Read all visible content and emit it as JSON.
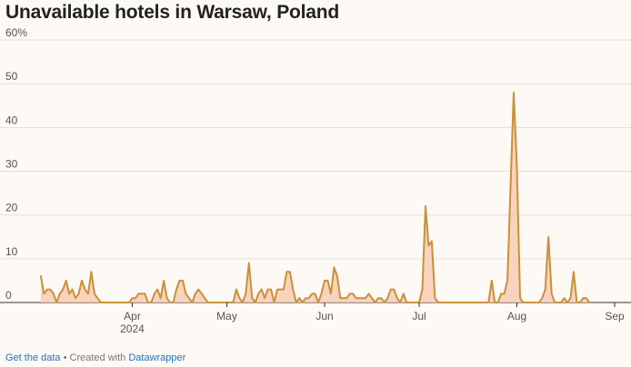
{
  "chart_data": {
    "type": "area",
    "title": "Unavailable hotels in Warsaw, Poland",
    "ylabel": "%",
    "ylim": [
      0,
      60
    ],
    "y_ticks": [
      0,
      10,
      20,
      30,
      40,
      50,
      60
    ],
    "y_tick_labels": [
      "0",
      "10",
      "20",
      "30",
      "40",
      "50",
      "60%"
    ],
    "x_range": [
      0,
      184
    ],
    "x_ticks": [
      {
        "day": 31,
        "label": "Apr",
        "sublabel": "2024"
      },
      {
        "day": 61,
        "label": "May",
        "sublabel": ""
      },
      {
        "day": 92,
        "label": "Jun",
        "sublabel": ""
      },
      {
        "day": 122,
        "label": "Jul",
        "sublabel": ""
      },
      {
        "day": 153,
        "label": "Aug",
        "sublabel": ""
      },
      {
        "day": 184,
        "label": "Sep",
        "sublabel": ""
      }
    ],
    "series": [
      {
        "name": "Unavailable hotels",
        "line_color": "#c9913a",
        "fill_color": "#f8ccb4",
        "points": [
          [
            2,
            6
          ],
          [
            3,
            2
          ],
          [
            4,
            3
          ],
          [
            5,
            3
          ],
          [
            6,
            2
          ],
          [
            7,
            0
          ],
          [
            8,
            2
          ],
          [
            9,
            3
          ],
          [
            10,
            5
          ],
          [
            11,
            2
          ],
          [
            12,
            3
          ],
          [
            13,
            1
          ],
          [
            14,
            2
          ],
          [
            15,
            5
          ],
          [
            16,
            3
          ],
          [
            17,
            2
          ],
          [
            18,
            7
          ],
          [
            19,
            2
          ],
          [
            20,
            1
          ],
          [
            21,
            0
          ],
          [
            29,
            0
          ],
          [
            30,
            0
          ],
          [
            31,
            1
          ],
          [
            32,
            1
          ],
          [
            33,
            2
          ],
          [
            34,
            2
          ],
          [
            35,
            2
          ],
          [
            36,
            0
          ],
          [
            37,
            0
          ],
          [
            38,
            2
          ],
          [
            39,
            3
          ],
          [
            40,
            1
          ],
          [
            41,
            5
          ],
          [
            42,
            1
          ],
          [
            43,
            0
          ],
          [
            44,
            0
          ],
          [
            45,
            3
          ],
          [
            46,
            5
          ],
          [
            47,
            5
          ],
          [
            48,
            2
          ],
          [
            49,
            1
          ],
          [
            50,
            0
          ],
          [
            51,
            2
          ],
          [
            52,
            3
          ],
          [
            53,
            2
          ],
          [
            54,
            1
          ],
          [
            55,
            0
          ],
          [
            62,
            0
          ],
          [
            63,
            0
          ],
          [
            64,
            3
          ],
          [
            65,
            1
          ],
          [
            66,
            0
          ],
          [
            67,
            2
          ],
          [
            68,
            9
          ],
          [
            69,
            1
          ],
          [
            70,
            0
          ],
          [
            71,
            2
          ],
          [
            72,
            3
          ],
          [
            73,
            1
          ],
          [
            74,
            3
          ],
          [
            75,
            3
          ],
          [
            76,
            0
          ],
          [
            77,
            3
          ],
          [
            78,
            3
          ],
          [
            79,
            3
          ],
          [
            80,
            7
          ],
          [
            81,
            7
          ],
          [
            82,
            3
          ],
          [
            83,
            0
          ],
          [
            84,
            1
          ],
          [
            85,
            0
          ],
          [
            86,
            1
          ],
          [
            87,
            1
          ],
          [
            88,
            2
          ],
          [
            89,
            2
          ],
          [
            90,
            0
          ],
          [
            91,
            2
          ],
          [
            92,
            5
          ],
          [
            93,
            5
          ],
          [
            94,
            2
          ],
          [
            95,
            8
          ],
          [
            96,
            6
          ],
          [
            97,
            1
          ],
          [
            98,
            1
          ],
          [
            99,
            1
          ],
          [
            100,
            2
          ],
          [
            101,
            2
          ],
          [
            102,
            1
          ],
          [
            103,
            1
          ],
          [
            104,
            1
          ],
          [
            105,
            1
          ],
          [
            106,
            2
          ],
          [
            107,
            1
          ],
          [
            108,
            0
          ],
          [
            109,
            1
          ],
          [
            110,
            1
          ],
          [
            111,
            0
          ],
          [
            112,
            1
          ],
          [
            113,
            3
          ],
          [
            114,
            3
          ],
          [
            115,
            1
          ],
          [
            116,
            0
          ],
          [
            117,
            2
          ],
          [
            118,
            0
          ],
          [
            122,
            0
          ],
          [
            123,
            3
          ],
          [
            124,
            22
          ],
          [
            125,
            13
          ],
          [
            126,
            14
          ],
          [
            127,
            1
          ],
          [
            128,
            0
          ],
          [
            144,
            0
          ],
          [
            145,
            5
          ],
          [
            146,
            0
          ],
          [
            147,
            0
          ],
          [
            148,
            2
          ],
          [
            149,
            2
          ],
          [
            150,
            5
          ],
          [
            151,
            27
          ],
          [
            152,
            48
          ],
          [
            153,
            31
          ],
          [
            154,
            1
          ],
          [
            155,
            0
          ],
          [
            160,
            0
          ],
          [
            161,
            1
          ],
          [
            162,
            3
          ],
          [
            163,
            15
          ],
          [
            164,
            2
          ],
          [
            165,
            0
          ],
          [
            166,
            0
          ],
          [
            167,
            0
          ],
          [
            168,
            1
          ],
          [
            169,
            0
          ],
          [
            170,
            1
          ],
          [
            171,
            7
          ],
          [
            172,
            0
          ],
          [
            173,
            0
          ],
          [
            174,
            1
          ],
          [
            175,
            1
          ],
          [
            176,
            0
          ]
        ]
      }
    ]
  },
  "footer": {
    "get_data_label": "Get the data",
    "separator": " • Created with ",
    "credit_label": "Datawrapper"
  }
}
